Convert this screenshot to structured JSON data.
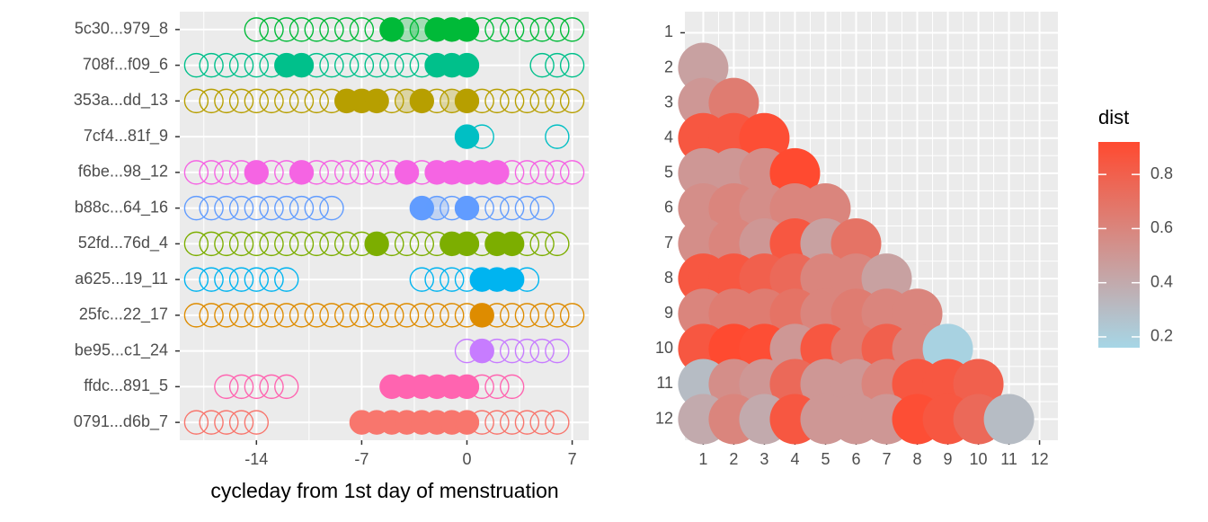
{
  "chart_data": [
    {
      "type": "dot",
      "xlabel": "cycleday from 1st day of menstruation",
      "xlim": [
        -19.1,
        8.1
      ],
      "xticks": [
        -14,
        -7,
        0,
        7
      ],
      "grid": true,
      "categories": [
        "5c30...979_8",
        "708f...f09_6",
        "353a...dd_13",
        "7cf4...81f_9",
        "f6be...98_12",
        "b88c...64_16",
        "52fd...76d_4",
        "a625...19_11",
        "25fc...22_17",
        "be95...c1_24",
        "ffdc...891_5",
        "0791...d6b_7"
      ],
      "rows": [
        {
          "color": "#00BA38",
          "days": [
            -14,
            -13,
            -12,
            -11,
            -10,
            -9,
            -8,
            -7,
            -6,
            -5,
            -4,
            -3,
            -2,
            -1,
            0,
            1,
            2,
            3,
            4,
            5,
            6,
            7
          ],
          "fill": [
            0,
            0,
            0,
            0,
            0,
            0,
            0,
            0,
            0,
            1,
            0.5,
            0.5,
            1,
            1,
            1,
            0,
            0,
            0,
            0,
            0,
            0,
            0
          ]
        },
        {
          "color": "#00C08B",
          "days": [
            -18,
            -17,
            -16,
            -15,
            -14,
            -13,
            -12,
            -11,
            -10,
            -9,
            -8,
            -7,
            -6,
            -5,
            -4,
            -3,
            -2,
            -1,
            0,
            5,
            6,
            7
          ],
          "fill": [
            0,
            0,
            0,
            0,
            0,
            0,
            1,
            1,
            0,
            0,
            0,
            0,
            0,
            0,
            0,
            0,
            1,
            1,
            1,
            0,
            0,
            0
          ]
        },
        {
          "color": "#B79F00",
          "days": [
            -18,
            -17,
            -16,
            -15,
            -14,
            -13,
            -12,
            -11,
            -10,
            -9,
            -8,
            -7,
            -6,
            -5,
            -4,
            -3,
            -2,
            -1,
            0,
            1,
            2,
            3,
            4,
            5,
            6,
            7
          ],
          "fill": [
            0,
            0,
            0,
            0,
            0,
            0,
            0,
            0,
            0,
            0,
            1,
            1,
            1,
            0,
            0.5,
            1,
            0,
            0.5,
            1,
            0,
            0,
            0,
            0,
            0,
            0,
            0
          ]
        },
        {
          "color": "#00BFC4",
          "days": [
            0,
            1,
            6
          ],
          "fill": [
            1,
            0,
            0
          ]
        },
        {
          "color": "#F564E3",
          "days": [
            -18,
            -17,
            -16,
            -15,
            -14,
            -13,
            -12,
            -11,
            -10,
            -9,
            -8,
            -7,
            -6,
            -5,
            -4,
            -3,
            -2,
            -1,
            0,
            1,
            2,
            3,
            4,
            5,
            6,
            7
          ],
          "fill": [
            0,
            0,
            0,
            0,
            1,
            0,
            0,
            1,
            0,
            0,
            0,
            0,
            0,
            0,
            1,
            0,
            1,
            1,
            1,
            1,
            1,
            0,
            0,
            0,
            0,
            0
          ]
        },
        {
          "color": "#619CFF",
          "days": [
            -18,
            -17,
            -16,
            -15,
            -14,
            -13,
            -12,
            -11,
            -10,
            -9,
            -3,
            -2,
            -1,
            0,
            1,
            2,
            3,
            4,
            5
          ],
          "fill": [
            0,
            0,
            0,
            0,
            0,
            0,
            0,
            0,
            0,
            0,
            1,
            0.5,
            0,
            1,
            0,
            0,
            0,
            0,
            0
          ]
        },
        {
          "color": "#7CAE00",
          "days": [
            -18,
            -17,
            -16,
            -15,
            -14,
            -13,
            -12,
            -11,
            -10,
            -9,
            -8,
            -7,
            -6,
            -5,
            -4,
            -3,
            -2,
            -1,
            0,
            1,
            2,
            3,
            4,
            5,
            6
          ],
          "fill": [
            0,
            0,
            0,
            0,
            0,
            0,
            0,
            0,
            0,
            0,
            0,
            0,
            1,
            0,
            0,
            0,
            0,
            1,
            1,
            0,
            1,
            1,
            0,
            0,
            0
          ]
        },
        {
          "color": "#00B4F0",
          "days": [
            -18,
            -17,
            -16,
            -15,
            -14,
            -13,
            -12,
            -3,
            -2,
            -1,
            0,
            1,
            2,
            3,
            4
          ],
          "fill": [
            0,
            0,
            0,
            0,
            0,
            0,
            0,
            0,
            0,
            0,
            0,
            1,
            1,
            1,
            0
          ]
        },
        {
          "color": "#DE8C00",
          "days": [
            -18,
            -17,
            -16,
            -15,
            -14,
            -13,
            -12,
            -11,
            -10,
            -9,
            -8,
            -7,
            -6,
            -5,
            -4,
            -3,
            -2,
            -1,
            0,
            1,
            2,
            3,
            4,
            5,
            6,
            7
          ],
          "fill": [
            0,
            0,
            0,
            0,
            0,
            0,
            0,
            0,
            0,
            0,
            0,
            0,
            0,
            0,
            0,
            0,
            0,
            0,
            0,
            1,
            0,
            0,
            0,
            0,
            0,
            0
          ]
        },
        {
          "color": "#C77CFF",
          "days": [
            0,
            1,
            2,
            3,
            4,
            5,
            6
          ],
          "fill": [
            0,
            1,
            0,
            0,
            0,
            0,
            0
          ]
        },
        {
          "color": "#FF64B0",
          "days": [
            -16,
            -15,
            -14,
            -13,
            -12,
            -5,
            -4,
            -3,
            -2,
            -1,
            0,
            1,
            2,
            3
          ],
          "fill": [
            0,
            0,
            0,
            0,
            0,
            1,
            1,
            1,
            1,
            1,
            1,
            0,
            0,
            0
          ]
        },
        {
          "color": "#F8766D",
          "days": [
            -18,
            -17,
            -16,
            -15,
            -14,
            -7,
            -6,
            -5,
            -4,
            -3,
            -2,
            -1,
            0,
            1,
            2,
            3,
            4,
            5,
            6
          ],
          "fill": [
            0,
            0,
            0,
            0,
            0,
            1,
            1,
            1,
            1,
            1,
            1,
            1,
            1,
            0,
            0,
            0,
            0,
            0,
            0
          ]
        }
      ]
    },
    {
      "type": "heatmap",
      "xlim": [
        0.4,
        12.6
      ],
      "ylim": [
        0.4,
        12.6
      ],
      "xticks": [
        1,
        2,
        3,
        4,
        5,
        6,
        7,
        8,
        9,
        10,
        11,
        12
      ],
      "yticks": [
        1,
        2,
        3,
        4,
        5,
        6,
        7,
        8,
        9,
        10,
        11,
        12
      ],
      "grid": true,
      "values": [
        [],
        [
          0.45
        ],
        [
          0.5,
          0.65
        ],
        [
          0.85,
          0.85,
          0.9
        ],
        [
          0.5,
          0.5,
          0.55,
          0.92
        ],
        [
          0.55,
          0.6,
          0.55,
          0.6,
          0.6
        ],
        [
          0.55,
          0.6,
          0.5,
          0.85,
          0.45,
          0.7
        ],
        [
          0.85,
          0.85,
          0.8,
          0.75,
          0.6,
          0.6,
          0.45
        ],
        [
          0.6,
          0.65,
          0.65,
          0.7,
          0.6,
          0.65,
          0.6,
          0.6
        ],
        [
          0.85,
          0.92,
          0.9,
          0.5,
          0.85,
          0.65,
          0.8,
          0.6,
          0.18
        ],
        [
          0.3,
          0.55,
          0.5,
          0.75,
          0.5,
          0.5,
          0.6,
          0.85,
          0.85,
          0.8
        ],
        [
          0.4,
          0.6,
          0.4,
          0.85,
          0.5,
          0.5,
          0.5,
          0.9,
          0.85,
          0.75,
          0.3
        ]
      ],
      "color_scale": {
        "title": "dist",
        "low": "#a6d6e6",
        "high": "#ff4a30",
        "limits": [
          0.16,
          0.92
        ],
        "ticks": [
          0.2,
          0.4,
          0.6,
          0.8
        ]
      }
    }
  ]
}
